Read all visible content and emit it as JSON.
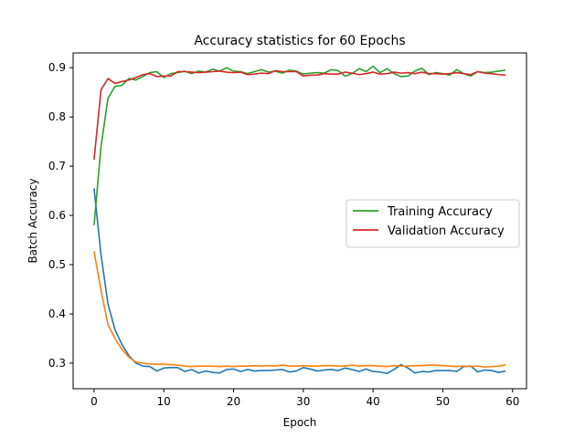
{
  "chart_data": {
    "type": "line",
    "title": "Accuracy statistics for 60 Epochs",
    "xlabel": "Epoch",
    "ylabel": "Batch Accuracy",
    "xlim": [
      -3,
      62
    ],
    "ylim": [
      0.248,
      0.93
    ],
    "xticks": [
      0,
      10,
      20,
      30,
      40,
      50,
      60
    ],
    "yticks": [
      0.3,
      0.4,
      0.5,
      0.6,
      0.7,
      0.8,
      0.9
    ],
    "grid": false,
    "legend_position": "center-right",
    "x": [
      0,
      1,
      2,
      3,
      4,
      5,
      6,
      7,
      8,
      9,
      10,
      11,
      12,
      13,
      14,
      15,
      16,
      17,
      18,
      19,
      20,
      21,
      22,
      23,
      24,
      25,
      26,
      27,
      28,
      29,
      30,
      31,
      32,
      33,
      34,
      35,
      36,
      37,
      38,
      39,
      40,
      41,
      42,
      43,
      44,
      45,
      46,
      47,
      48,
      49,
      50,
      51,
      52,
      53,
      54,
      55,
      56,
      57,
      58,
      59
    ],
    "series": [
      {
        "name": "",
        "color": "#1f77b4",
        "values": [
          0.655,
          0.52,
          0.42,
          0.368,
          0.338,
          0.315,
          0.3,
          0.294,
          0.293,
          0.284,
          0.29,
          0.291,
          0.291,
          0.283,
          0.287,
          0.28,
          0.284,
          0.281,
          0.28,
          0.287,
          0.288,
          0.283,
          0.287,
          0.284,
          0.285,
          0.285,
          0.286,
          0.287,
          0.282,
          0.284,
          0.291,
          0.288,
          0.284,
          0.286,
          0.287,
          0.285,
          0.29,
          0.287,
          0.283,
          0.288,
          0.283,
          0.282,
          0.279,
          0.287,
          0.297,
          0.29,
          0.28,
          0.283,
          0.282,
          0.285,
          0.285,
          0.285,
          0.283,
          0.293,
          0.294,
          0.282,
          0.286,
          0.285,
          0.281,
          0.284
        ]
      },
      {
        "name": "",
        "color": "#ff7f0e",
        "values": [
          0.527,
          0.448,
          0.378,
          0.35,
          0.328,
          0.312,
          0.302,
          0.3,
          0.298,
          0.298,
          0.298,
          0.297,
          0.296,
          0.294,
          0.293,
          0.294,
          0.294,
          0.294,
          0.293,
          0.294,
          0.293,
          0.294,
          0.294,
          0.295,
          0.294,
          0.295,
          0.294,
          0.296,
          0.294,
          0.294,
          0.295,
          0.294,
          0.294,
          0.295,
          0.295,
          0.294,
          0.294,
          0.296,
          0.294,
          0.295,
          0.295,
          0.294,
          0.293,
          0.295,
          0.294,
          0.294,
          0.295,
          0.295,
          0.296,
          0.296,
          0.295,
          0.294,
          0.293,
          0.294,
          0.293,
          0.294,
          0.292,
          0.293,
          0.294,
          0.296
        ]
      },
      {
        "name": "Training Accuracy",
        "color": "#2ca02c",
        "values": [
          0.58,
          0.74,
          0.838,
          0.862,
          0.864,
          0.878,
          0.875,
          0.882,
          0.89,
          0.892,
          0.88,
          0.888,
          0.89,
          0.893,
          0.888,
          0.893,
          0.891,
          0.897,
          0.893,
          0.9,
          0.893,
          0.892,
          0.888,
          0.892,
          0.896,
          0.891,
          0.893,
          0.889,
          0.895,
          0.893,
          0.887,
          0.889,
          0.89,
          0.889,
          0.896,
          0.894,
          0.883,
          0.888,
          0.898,
          0.892,
          0.903,
          0.89,
          0.898,
          0.888,
          0.882,
          0.883,
          0.893,
          0.899,
          0.886,
          0.89,
          0.888,
          0.885,
          0.896,
          0.888,
          0.883,
          0.892,
          0.89,
          0.891,
          0.893,
          0.895
        ]
      },
      {
        "name": "Validation Accuracy",
        "color": "#d62728",
        "values": [
          0.713,
          0.855,
          0.878,
          0.868,
          0.872,
          0.875,
          0.88,
          0.886,
          0.888,
          0.882,
          0.883,
          0.883,
          0.892,
          0.892,
          0.891,
          0.89,
          0.891,
          0.892,
          0.893,
          0.891,
          0.89,
          0.891,
          0.886,
          0.887,
          0.889,
          0.888,
          0.894,
          0.892,
          0.892,
          0.892,
          0.883,
          0.885,
          0.885,
          0.888,
          0.887,
          0.887,
          0.891,
          0.889,
          0.886,
          0.888,
          0.891,
          0.887,
          0.888,
          0.891,
          0.889,
          0.89,
          0.888,
          0.891,
          0.888,
          0.888,
          0.887,
          0.888,
          0.89,
          0.888,
          0.886,
          0.892,
          0.889,
          0.888,
          0.886,
          0.885
        ]
      }
    ]
  }
}
